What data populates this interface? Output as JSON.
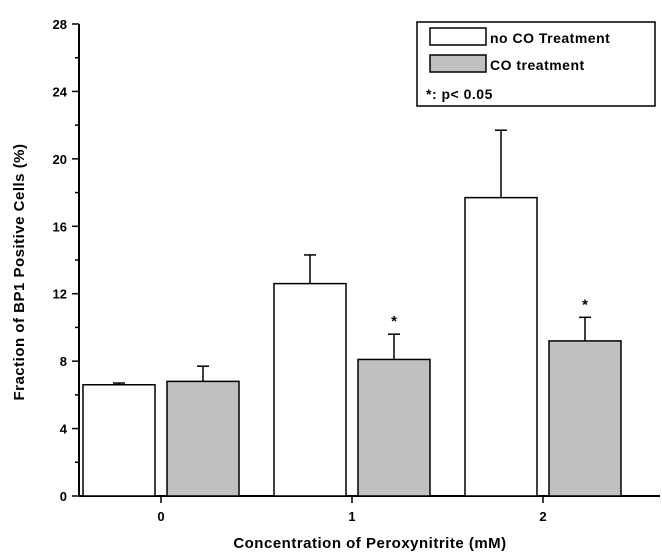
{
  "chart_data": {
    "type": "bar",
    "xlabel": "Concentration of Peroxynitrite (mM)",
    "ylabel": "Fraction of BP1 Positive Cells (%)",
    "ylim": [
      0,
      28
    ],
    "yticks": [
      0,
      4,
      8,
      12,
      16,
      20,
      24,
      28
    ],
    "categories": [
      "0",
      "1",
      "2"
    ],
    "series": [
      {
        "name": "no CO Treatment",
        "fill": "#ffffff",
        "values": [
          6.6,
          12.6,
          17.7
        ],
        "errors": [
          0.1,
          1.7,
          4.0
        ],
        "significance": [
          "",
          "",
          ""
        ]
      },
      {
        "name": "CO treatment",
        "fill": "#c0c0c0",
        "values": [
          6.8,
          8.1,
          9.2
        ],
        "errors": [
          0.9,
          1.5,
          1.4
        ],
        "significance": [
          "",
          "*",
          "*"
        ]
      }
    ],
    "legend": {
      "position": "top-right",
      "note": "*: p< 0.05"
    },
    "grid": false
  }
}
